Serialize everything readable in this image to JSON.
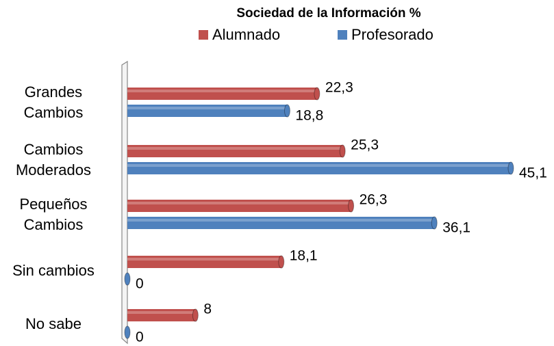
{
  "chart_data": {
    "type": "bar",
    "orientation": "horizontal",
    "title": "Sociedad de la Información %",
    "categories": [
      "Grandes\nCambios",
      "Cambios\nModerados",
      "Pequeños\nCambios",
      "Sin cambios",
      "No sabe"
    ],
    "series": [
      {
        "name": "Alumnado",
        "color": "#c0504d",
        "values": [
          22.3,
          25.3,
          26.3,
          18.1,
          8
        ],
        "value_labels": [
          "22,3",
          "25,3",
          "26,3",
          "18,1",
          "8"
        ]
      },
      {
        "name": "Profesorado",
        "color": "#4f81bd",
        "values": [
          18.8,
          45.1,
          36.1,
          0,
          0
        ],
        "value_labels": [
          "18,8",
          "45,1",
          "36,1",
          "0",
          "0"
        ]
      }
    ],
    "legend": "top"
  }
}
